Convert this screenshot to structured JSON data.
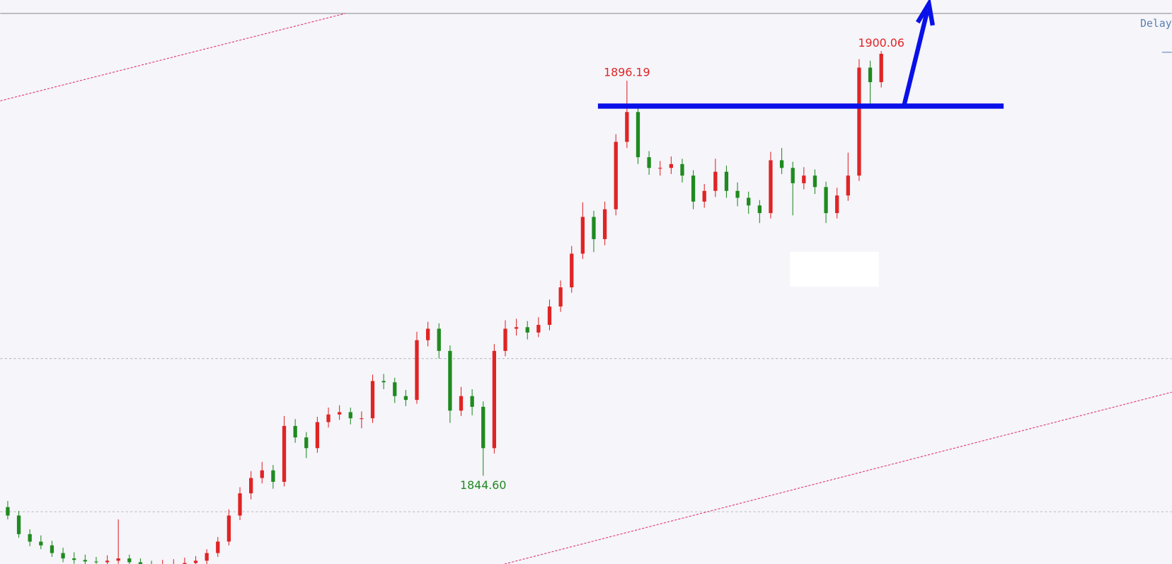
{
  "chart_data": {
    "type": "candlestick",
    "open": [
      1840.5,
      1839.4,
      1836.97,
      1835.99,
      1835.5,
      1834.5,
      1833.8,
      1833.6,
      1833.4,
      1833.3,
      1833.5,
      1833.8,
      1833.3,
      1833.0,
      1832.8,
      1832.9,
      1833.0,
      1833.2,
      1833.5,
      1834.5,
      1836.0,
      1839.4,
      1842.3,
      1844.3,
      1845.3,
      1843.8,
      1851.1,
      1849.6,
      1848.2,
      1851.6,
      1852.6,
      1852.9,
      1852.1,
      1852.1,
      1856.97,
      1856.8,
      1855.0,
      1854.5,
      1862.3,
      1863.8,
      1860.9,
      1853.1,
      1855.0,
      1853.6,
      1848.2,
      1860.9,
      1863.8,
      1864.0,
      1863.3,
      1864.3,
      1866.7,
      1869.2,
      1873.6,
      1878.4,
      1875.5,
      1879.4,
      1888.2,
      1892.1,
      1886.2,
      1884.8,
      1884.8,
      1885.3,
      1883.8,
      1880.4,
      1881.8,
      1884.3,
      1881.8,
      1880.9,
      1879.9,
      1878.9,
      1885.8,
      1884.8,
      1882.8,
      1883.8,
      1882.3,
      1878.9,
      1881.2,
      1883.8,
      1897.9,
      1896.0
    ],
    "high": [
      1841.3,
      1840.0,
      1837.6,
      1836.8,
      1836.1,
      1835.2,
      1834.6,
      1834.3,
      1834.0,
      1834.2,
      1838.9,
      1834.3,
      1833.8,
      1833.5,
      1833.6,
      1833.7,
      1833.9,
      1834.1,
      1835.0,
      1836.6,
      1840.2,
      1843.1,
      1845.2,
      1846.4,
      1846.0,
      1852.4,
      1852.0,
      1850.3,
      1852.3,
      1853.5,
      1853.8,
      1853.5,
      1853.0,
      1857.8,
      1857.9,
      1857.4,
      1855.8,
      1863.4,
      1864.7,
      1864.5,
      1861.6,
      1856.2,
      1855.9,
      1854.3,
      1861.8,
      1864.9,
      1865.1,
      1864.8,
      1865.3,
      1867.6,
      1870.1,
      1874.6,
      1880.3,
      1879.2,
      1880.4,
      1889.2,
      1896.19,
      1893.0,
      1887.0,
      1885.7,
      1886.3,
      1886.0,
      1884.5,
      1882.7,
      1886.0,
      1885.1,
      1882.9,
      1881.7,
      1880.6,
      1886.9,
      1887.4,
      1885.6,
      1884.9,
      1884.6,
      1883.0,
      1882.2,
      1886.8,
      1899.0,
      1898.8,
      1900.06
    ],
    "low": [
      1838.9,
      1836.5,
      1835.4,
      1835.0,
      1834.0,
      1833.3,
      1833.1,
      1832.9,
      1832.7,
      1832.8,
      1833.1,
      1832.7,
      1832.4,
      1832.2,
      1832.3,
      1832.4,
      1832.5,
      1832.7,
      1833.0,
      1834.0,
      1835.5,
      1838.8,
      1841.5,
      1843.6,
      1842.9,
      1843.2,
      1848.9,
      1846.9,
      1847.6,
      1850.9,
      1851.9,
      1851.3,
      1850.8,
      1851.5,
      1855.9,
      1854.1,
      1853.7,
      1854.0,
      1861.5,
      1859.9,
      1851.5,
      1852.4,
      1852.5,
      1844.6,
      1847.5,
      1860.2,
      1862.9,
      1862.4,
      1862.7,
      1863.6,
      1866.0,
      1868.5,
      1872.9,
      1873.8,
      1874.7,
      1878.6,
      1887.4,
      1885.3,
      1883.9,
      1883.8,
      1884.0,
      1882.9,
      1879.4,
      1879.6,
      1881.0,
      1880.9,
      1879.8,
      1878.8,
      1877.6,
      1878.2,
      1884.0,
      1878.6,
      1882.0,
      1881.4,
      1877.6,
      1878.2,
      1880.5,
      1883.1,
      1892.9,
      1895.3
    ],
    "close": [
      1839.4,
      1836.97,
      1835.99,
      1835.5,
      1834.5,
      1833.8,
      1833.6,
      1833.4,
      1833.3,
      1833.5,
      1833.8,
      1833.3,
      1833.0,
      1832.8,
      1832.9,
      1833.0,
      1833.2,
      1833.5,
      1834.5,
      1836.0,
      1839.4,
      1842.3,
      1844.3,
      1845.3,
      1843.8,
      1851.1,
      1849.6,
      1848.2,
      1851.6,
      1852.6,
      1852.9,
      1852.1,
      1852.1,
      1856.97,
      1856.8,
      1855.0,
      1854.5,
      1862.3,
      1863.8,
      1860.9,
      1853.1,
      1855.0,
      1853.6,
      1848.2,
      1860.9,
      1863.8,
      1864.0,
      1863.3,
      1864.3,
      1866.7,
      1869.2,
      1873.6,
      1878.4,
      1875.5,
      1879.4,
      1888.2,
      1892.1,
      1886.2,
      1884.8,
      1884.8,
      1885.3,
      1883.8,
      1880.4,
      1881.8,
      1884.3,
      1881.8,
      1880.9,
      1879.9,
      1878.9,
      1885.8,
      1884.8,
      1882.8,
      1883.8,
      1882.3,
      1878.9,
      1881.2,
      1883.8,
      1897.9,
      1896.0,
      1899.7
    ],
    "up_color": "#e02424",
    "down_color": "#1f8a1f",
    "ylim": [
      1833.07,
      1906.73
    ],
    "high_labels": [
      "1896.19",
      "1900.06"
    ],
    "low_labels": [
      "1844.60"
    ],
    "high_label_color": "#e02424",
    "low_label_color": "#1f8a1f",
    "status": "Delay"
  }
}
